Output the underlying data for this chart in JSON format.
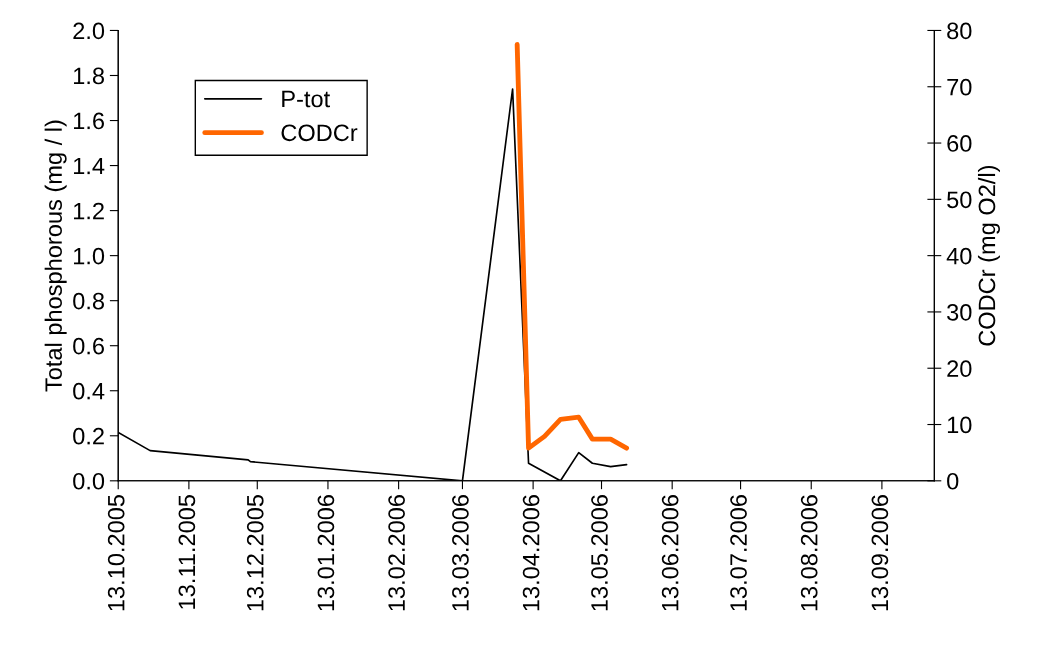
{
  "chart_data": {
    "type": "line",
    "ylabel": "Total phosphorous (mg / l)",
    "y2label": "CODCr (mg O2/l)",
    "xlim": [
      "2005-10-13",
      "2006-10-06"
    ],
    "xticks": [
      {
        "value": "2005-10-13",
        "label": "13.10.2005"
      },
      {
        "value": "2005-11-13",
        "label": "13.11.2005"
      },
      {
        "value": "2005-12-13",
        "label": "13.12.2005"
      },
      {
        "value": "2006-01-13",
        "label": "13.01.2006"
      },
      {
        "value": "2006-02-13",
        "label": "13.02.2006"
      },
      {
        "value": "2006-03-13",
        "label": "13.03.2006"
      },
      {
        "value": "2006-04-13",
        "label": "13.04.2006"
      },
      {
        "value": "2006-05-13",
        "label": "13.05.2006"
      },
      {
        "value": "2006-06-13",
        "label": "13.06.2006"
      },
      {
        "value": "2006-07-13",
        "label": "13.07.2006"
      },
      {
        "value": "2006-08-13",
        "label": "13.08.2006"
      },
      {
        "value": "2006-09-13",
        "label": "13.09.2006"
      }
    ],
    "ylim": [
      0,
      2.0
    ],
    "yticks": [
      {
        "value": 0,
        "label": "0.0"
      },
      {
        "value": 0.2,
        "label": "0.2"
      },
      {
        "value": 0.4,
        "label": "0.4"
      },
      {
        "value": 0.6,
        "label": "0.6"
      },
      {
        "value": 0.8,
        "label": "0.8"
      },
      {
        "value": 1.0,
        "label": "1.0"
      },
      {
        "value": 1.2,
        "label": "1.2"
      },
      {
        "value": 1.4,
        "label": "1.4"
      },
      {
        "value": 1.6,
        "label": "1.6"
      },
      {
        "value": 1.8,
        "label": "1.8"
      },
      {
        "value": 2.0,
        "label": "2.0"
      }
    ],
    "y2lim": [
      0,
      80
    ],
    "y2ticks": [
      0,
      10,
      20,
      30,
      40,
      50,
      60,
      70,
      80
    ],
    "grid": false,
    "legend": "top left",
    "marker": "none",
    "line_style": "solid",
    "series": [
      {
        "name": "P-tot",
        "color": "#000000",
        "x": [
          "2005-10-13",
          "2005-10-27",
          "2005-12-09",
          "2005-12-10",
          "2006-03-13",
          "2006-04-04",
          "2006-04-11",
          "2006-04-25",
          "2006-05-03",
          "2006-05-09",
          "2006-05-17",
          "2006-05-24"
        ],
        "values": [
          0.215,
          0.134,
          0.093,
          0.085,
          0.0,
          1.74,
          0.078,
          0.0,
          0.125,
          0.078,
          0.063,
          0.072
        ]
      },
      {
        "name": "CODCr",
        "color": "#ff6600",
        "axis": "y2",
        "x": [
          "2006-04-06",
          "2006-04-11",
          "2006-04-18",
          "2006-04-25",
          "2006-05-03",
          "2006-05-09",
          "2006-05-17",
          "2006-05-24"
        ],
        "values": [
          77.5,
          5.8,
          7.9,
          10.9,
          11.3,
          7.4,
          7.4,
          5.8
        ]
      }
    ]
  }
}
